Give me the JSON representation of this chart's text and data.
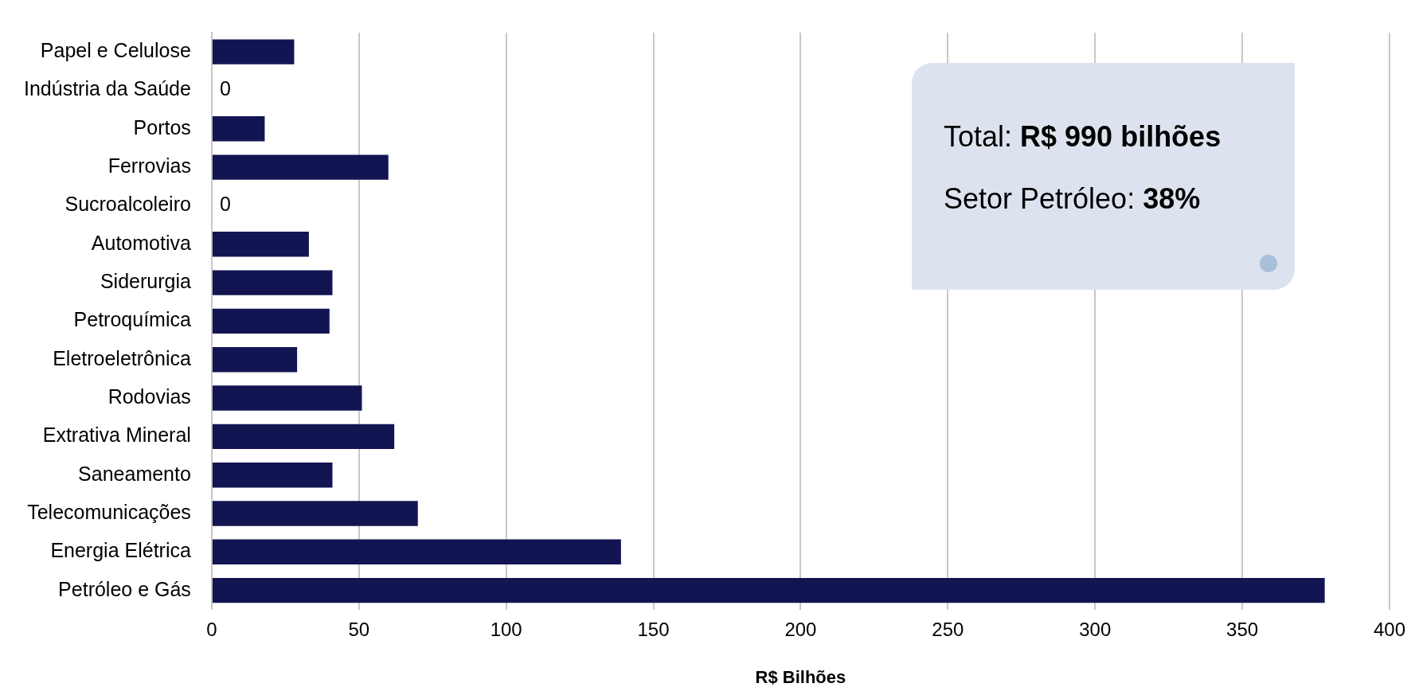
{
  "chart_data": {
    "type": "bar",
    "orientation": "horizontal",
    "xlabel": "R$ Bilhões",
    "categories": [
      "Papel e Celulose",
      "Indústria da Saúde",
      "Portos",
      "Ferrovias",
      "Sucroalcoleiro",
      "Automotiva",
      "Siderurgia",
      "Petroquímica",
      "Eletroeletrônica",
      "Rodovias",
      "Extrativa Mineral",
      "Saneamento",
      "Telecomunicações",
      "Energia Elétrica",
      "Petróleo e Gás"
    ],
    "values": [
      28,
      0,
      18,
      60,
      0,
      33,
      41,
      40,
      29,
      51,
      62,
      41,
      70,
      139,
      378
    ],
    "value_labels": [
      null,
      "0",
      null,
      null,
      "0",
      null,
      null,
      null,
      null,
      null,
      null,
      null,
      null,
      null,
      null
    ],
    "color": "#131452",
    "xlim": [
      0,
      400
    ],
    "xticks": [
      0,
      50,
      100,
      150,
      200,
      250,
      300,
      350,
      400
    ],
    "grid": "x",
    "annotations": [
      "Total: R$ 990 bilhões",
      "Setor Petróleo: 38%"
    ]
  }
}
